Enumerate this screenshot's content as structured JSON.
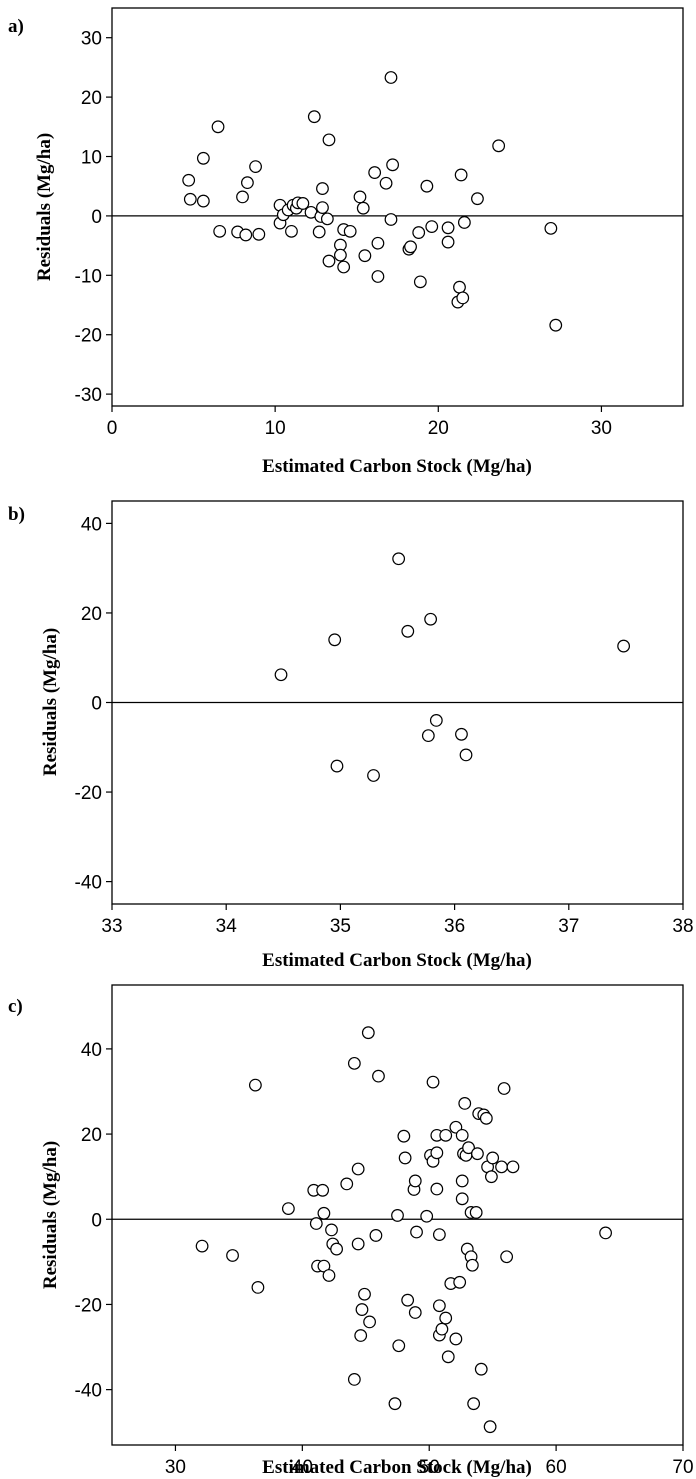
{
  "chart_data": [
    {
      "type": "scatter",
      "panel_label": "a)",
      "xlabel": "Estimated Carbon Stock (Mg/ha)",
      "ylabel": "Residuals (Mg/ha)",
      "xlim": [
        0,
        35
      ],
      "ylim": [
        -32,
        35
      ],
      "xticks": [
        0,
        10,
        20,
        30
      ],
      "yticks": [
        -30,
        -20,
        -10,
        0,
        10,
        20,
        30
      ],
      "reference_line_y": 0,
      "points": [
        [
          4.7,
          6.0
        ],
        [
          4.8,
          2.8
        ],
        [
          5.6,
          2.5
        ],
        [
          5.6,
          9.7
        ],
        [
          6.5,
          15.0
        ],
        [
          6.6,
          -2.6
        ],
        [
          7.7,
          -2.7
        ],
        [
          8.0,
          3.2
        ],
        [
          8.2,
          -3.2
        ],
        [
          8.3,
          5.6
        ],
        [
          8.8,
          8.3
        ],
        [
          9.0,
          -3.1
        ],
        [
          10.3,
          1.8
        ],
        [
          10.3,
          -1.2
        ],
        [
          10.5,
          0.2
        ],
        [
          10.8,
          1.0
        ],
        [
          11.0,
          -2.6
        ],
        [
          11.1,
          1.8
        ],
        [
          11.3,
          1.3
        ],
        [
          11.4,
          2.2
        ],
        [
          11.7,
          2.1
        ],
        [
          12.2,
          0.6
        ],
        [
          12.4,
          16.7
        ],
        [
          12.7,
          -2.7
        ],
        [
          12.8,
          -0.1
        ],
        [
          12.9,
          1.4
        ],
        [
          12.9,
          4.6
        ],
        [
          13.2,
          -0.5
        ],
        [
          13.3,
          12.8
        ],
        [
          13.3,
          -7.6
        ],
        [
          14.0,
          -4.9
        ],
        [
          14.0,
          -6.6
        ],
        [
          14.2,
          -8.6
        ],
        [
          14.2,
          -2.3
        ],
        [
          14.6,
          -2.6
        ],
        [
          15.2,
          3.2
        ],
        [
          15.4,
          1.3
        ],
        [
          15.5,
          -6.7
        ],
        [
          16.1,
          7.3
        ],
        [
          16.3,
          -4.6
        ],
        [
          16.3,
          -10.2
        ],
        [
          16.8,
          5.5
        ],
        [
          17.1,
          23.3
        ],
        [
          17.1,
          -0.6
        ],
        [
          17.2,
          8.6
        ],
        [
          18.2,
          -5.6
        ],
        [
          18.3,
          -5.2
        ],
        [
          18.8,
          -2.8
        ],
        [
          18.9,
          -11.1
        ],
        [
          19.3,
          5.0
        ],
        [
          19.6,
          -1.8
        ],
        [
          20.6,
          -2.0
        ],
        [
          20.6,
          -4.4
        ],
        [
          21.2,
          -14.5
        ],
        [
          21.3,
          -12.0
        ],
        [
          21.4,
          6.9
        ],
        [
          21.5,
          -13.8
        ],
        [
          21.6,
          -1.1
        ],
        [
          22.4,
          2.9
        ],
        [
          23.7,
          11.8
        ],
        [
          26.9,
          -2.1
        ],
        [
          27.2,
          -18.4
        ]
      ]
    },
    {
      "type": "scatter",
      "panel_label": "b)",
      "xlabel": "Estimated Carbon Stock (Mg/ha)",
      "ylabel": "Residuals (Mg/ha)",
      "xlim": [
        33,
        38
      ],
      "ylim": [
        -45,
        45
      ],
      "xticks": [
        33,
        34,
        35,
        36,
        37,
        38
      ],
      "yticks": [
        -40,
        -20,
        0,
        20,
        40
      ],
      "reference_line_y": 0,
      "points": [
        [
          34.48,
          6.2
        ],
        [
          34.95,
          14.0
        ],
        [
          34.97,
          -14.2
        ],
        [
          35.29,
          -16.3
        ],
        [
          35.51,
          32.1
        ],
        [
          35.59,
          15.9
        ],
        [
          35.77,
          -7.4
        ],
        [
          35.79,
          18.6
        ],
        [
          35.84,
          -4.0
        ],
        [
          36.06,
          -7.1
        ],
        [
          36.1,
          -11.7
        ],
        [
          37.48,
          12.6
        ]
      ]
    },
    {
      "type": "scatter",
      "panel_label": "c)",
      "xlabel": "Estimated Carbon Stock (Mg/ha)",
      "ylabel": "Residuals (Mg/ha)",
      "xlim": [
        25,
        70
      ],
      "ylim": [
        -53,
        55
      ],
      "xticks": [
        30,
        40,
        50,
        60,
        70
      ],
      "yticks": [
        -40,
        -20,
        0,
        20,
        40
      ],
      "reference_line_y": 0,
      "points": [
        [
          32.1,
          -6.3
        ],
        [
          34.5,
          -8.5
        ],
        [
          36.3,
          31.5
        ],
        [
          36.5,
          -16.0
        ],
        [
          38.9,
          2.5
        ],
        [
          40.9,
          6.8
        ],
        [
          41.1,
          -1.0
        ],
        [
          41.2,
          -11.0
        ],
        [
          41.6,
          6.8
        ],
        [
          41.7,
          -11.0
        ],
        [
          41.7,
          1.4
        ],
        [
          42.1,
          -13.2
        ],
        [
          42.3,
          -2.5
        ],
        [
          42.4,
          -5.8
        ],
        [
          42.7,
          -7.0
        ],
        [
          43.5,
          8.3
        ],
        [
          44.1,
          -37.6
        ],
        [
          44.1,
          36.6
        ],
        [
          44.4,
          -5.8
        ],
        [
          44.4,
          11.8
        ],
        [
          44.6,
          -27.3
        ],
        [
          44.7,
          -21.2
        ],
        [
          44.9,
          -17.6
        ],
        [
          45.2,
          43.8
        ],
        [
          45.3,
          -24.1
        ],
        [
          45.8,
          -3.8
        ],
        [
          46.0,
          33.6
        ],
        [
          47.3,
          -43.3
        ],
        [
          47.5,
          0.9
        ],
        [
          47.6,
          -29.7
        ],
        [
          48.0,
          19.5
        ],
        [
          48.1,
          14.4
        ],
        [
          48.3,
          -19.0
        ],
        [
          48.8,
          7.0
        ],
        [
          48.9,
          9.0
        ],
        [
          48.9,
          -21.9
        ],
        [
          49.0,
          -3.0
        ],
        [
          49.8,
          0.7
        ],
        [
          50.1,
          15.0
        ],
        [
          50.3,
          32.2
        ],
        [
          50.3,
          13.6
        ],
        [
          50.6,
          7.1
        ],
        [
          50.6,
          15.6
        ],
        [
          50.6,
          19.7
        ],
        [
          50.8,
          -20.3
        ],
        [
          50.8,
          -27.2
        ],
        [
          50.8,
          -3.6
        ],
        [
          51.0,
          -25.8
        ],
        [
          51.3,
          -23.2
        ],
        [
          51.3,
          19.7
        ],
        [
          51.5,
          -32.3
        ],
        [
          51.7,
          -15.1
        ],
        [
          52.1,
          -28.1
        ],
        [
          52.1,
          21.6
        ],
        [
          52.4,
          -14.8
        ],
        [
          52.6,
          4.8
        ],
        [
          52.6,
          9.0
        ],
        [
          52.6,
          19.7
        ],
        [
          52.7,
          15.4
        ],
        [
          52.8,
          27.2
        ],
        [
          52.9,
          15.0
        ],
        [
          53.0,
          -7.0
        ],
        [
          53.1,
          16.8
        ],
        [
          53.3,
          1.6
        ],
        [
          53.3,
          -8.8
        ],
        [
          53.4,
          -10.8
        ],
        [
          53.5,
          -43.3
        ],
        [
          53.7,
          1.6
        ],
        [
          53.8,
          15.4
        ],
        [
          53.9,
          24.8
        ],
        [
          54.1,
          -35.2
        ],
        [
          54.3,
          24.5
        ],
        [
          54.5,
          23.7
        ],
        [
          54.6,
          12.3
        ],
        [
          54.8,
          -48.7
        ],
        [
          54.9,
          10.0
        ],
        [
          55.0,
          14.4
        ],
        [
          55.7,
          12.3
        ],
        [
          55.9,
          30.7
        ],
        [
          56.1,
          -8.8
        ],
        [
          56.6,
          12.3
        ],
        [
          63.9,
          -3.2
        ]
      ]
    }
  ]
}
